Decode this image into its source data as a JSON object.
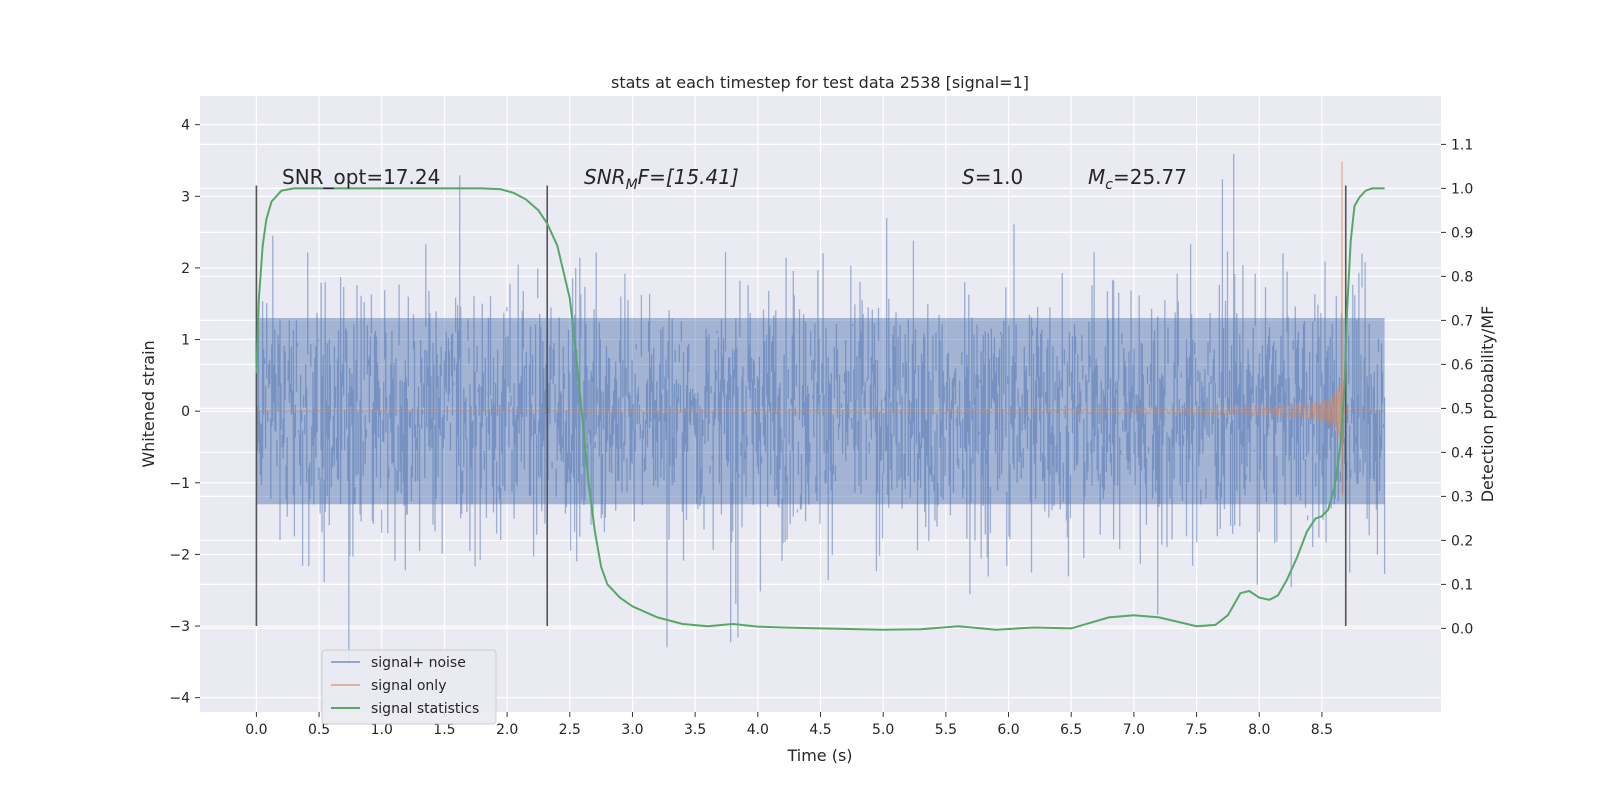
{
  "chart_data": {
    "type": "line",
    "title": "stats at each timestep for test data 2538 [signal=1]",
    "xlabel": "Time (s)",
    "ylabel": "Whitened strain",
    "y2label": "Detection probability/MF",
    "xlim": [
      -0.45,
      9.45
    ],
    "ylim": [
      -4.2,
      4.4
    ],
    "y2lim": [
      -0.19,
      1.21
    ],
    "x_ticks": [
      "0.0",
      "0.5",
      "1.0",
      "1.5",
      "2.0",
      "2.5",
      "3.0",
      "3.5",
      "4.0",
      "4.5",
      "5.0",
      "5.5",
      "6.0",
      "6.5",
      "7.0",
      "7.5",
      "8.0",
      "8.5"
    ],
    "y_ticks": [
      "4",
      "3",
      "2",
      "1",
      "0",
      "−1",
      "−2",
      "−3",
      "−4"
    ],
    "y2_ticks": [
      "1.1",
      "1.0",
      "0.9",
      "0.8",
      "0.7",
      "0.6",
      "0.5",
      "0.4",
      "0.3",
      "0.2",
      "0.1",
      "0.0"
    ],
    "grid": true,
    "annotations": {
      "snr_opt": "SNR_opt=17.24",
      "snr_mf_sym": "SNR",
      "snr_mf_sub": "M",
      "snr_mf_rest": "F=[15.41]",
      "s_sym": "S",
      "s_rest": "=1.0",
      "mc_sym": "M",
      "mc_sub": "c",
      "mc_rest": "=25.77"
    },
    "vlines_x": [
      0.0,
      2.32,
      8.69
    ],
    "vlines_range": [
      -3.0,
      3.15
    ],
    "colors": {
      "noise": "#4c72b0",
      "signal": "#dd8452",
      "stat": "#55a868",
      "vline": "#555555",
      "panel": "#eaeaf2",
      "grid": "#ffffff"
    },
    "series": [
      {
        "name": "signal+ noise",
        "description": "whitened strain, noise band approx ±2 with spikes to ±4, t=0.0–9.0 s"
      },
      {
        "name": "signal only",
        "description": "chirp with growing amplitude, peak approx 3.75 near t=8.65 s"
      },
      {
        "name": "signal statistics",
        "axis": "right",
        "x": [
          0.0,
          0.02,
          0.05,
          0.08,
          0.12,
          0.2,
          0.3,
          0.5,
          1.0,
          1.5,
          1.8,
          1.95,
          2.05,
          2.15,
          2.25,
          2.32,
          2.4,
          2.5,
          2.55,
          2.6,
          2.65,
          2.7,
          2.75,
          2.8,
          2.9,
          3.0,
          3.2,
          3.4,
          3.6,
          3.8,
          4.0,
          4.2,
          4.5,
          5.0,
          5.3,
          5.6,
          5.9,
          6.2,
          6.5,
          6.8,
          7.0,
          7.2,
          7.5,
          7.65,
          7.75,
          7.85,
          7.92,
          8.0,
          8.08,
          8.15,
          8.22,
          8.3,
          8.38,
          8.45,
          8.5,
          8.55,
          8.6,
          8.62,
          8.65,
          8.68,
          8.7,
          8.73,
          8.76,
          8.8,
          8.85,
          8.9,
          9.0
        ],
        "values": [
          0.58,
          0.75,
          0.87,
          0.93,
          0.97,
          0.995,
          1.0,
          1.0,
          1.0,
          1.0,
          1.0,
          0.998,
          0.99,
          0.975,
          0.95,
          0.92,
          0.87,
          0.75,
          0.62,
          0.48,
          0.33,
          0.22,
          0.14,
          0.1,
          0.07,
          0.05,
          0.025,
          0.01,
          0.005,
          0.01,
          0.004,
          0.002,
          0.0,
          -0.003,
          -0.002,
          0.005,
          -0.003,
          0.002,
          0.0,
          0.025,
          0.03,
          0.025,
          0.005,
          0.008,
          0.03,
          0.08,
          0.085,
          0.07,
          0.065,
          0.075,
          0.11,
          0.16,
          0.22,
          0.25,
          0.255,
          0.27,
          0.32,
          0.36,
          0.42,
          0.55,
          0.72,
          0.88,
          0.96,
          0.98,
          0.995,
          1.0,
          1.0
        ]
      }
    ]
  }
}
